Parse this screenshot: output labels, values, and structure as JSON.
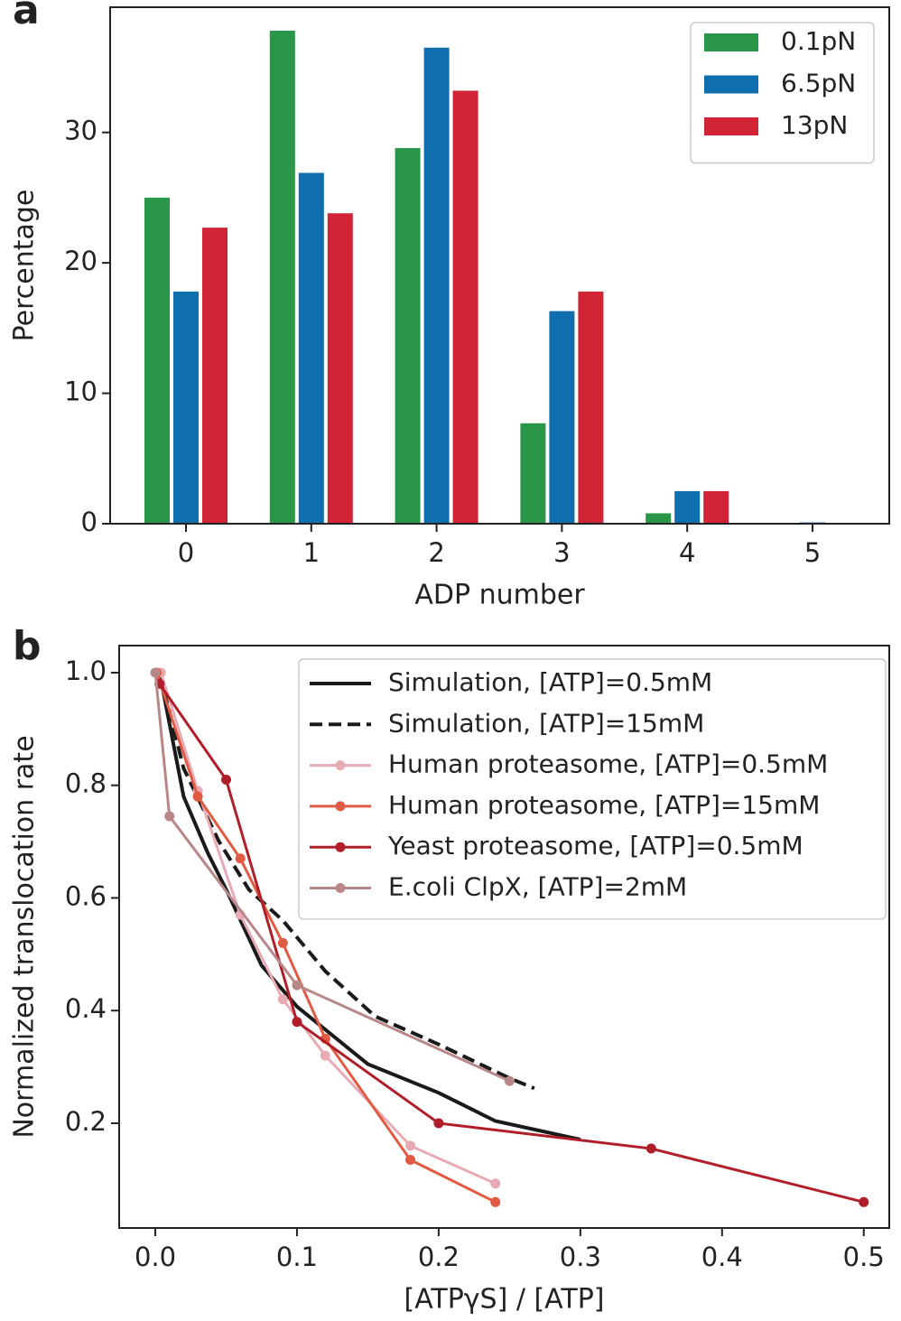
{
  "chart_data": [
    {
      "type": "bar",
      "panel_label": "a",
      "xlabel": "ADP number",
      "ylabel": "Percentage",
      "categories": [
        "0",
        "1",
        "2",
        "3",
        "4",
        "5"
      ],
      "series": [
        {
          "name": "0.1pN",
          "color": "#2a9748",
          "values": [
            25.0,
            37.8,
            28.8,
            7.7,
            0.8,
            0
          ]
        },
        {
          "name": "6.5pN",
          "color": "#0f6eae",
          "values": [
            17.8,
            26.9,
            36.5,
            16.3,
            2.5,
            0.1
          ]
        },
        {
          "name": "13pN",
          "color": "#d12435",
          "values": [
            22.7,
            23.8,
            33.2,
            17.8,
            2.5,
            0
          ]
        }
      ],
      "ylim": [
        0,
        39.6
      ],
      "yticks": [
        0,
        10,
        20,
        30
      ],
      "legend": "upper right"
    },
    {
      "type": "line",
      "panel_label": "b",
      "xlabel": "[ATPγS] / [ATP]",
      "ylabel": "Normalized translocation rate",
      "series": [
        {
          "name": "Simulation, [ATP]=0.5mM",
          "color": "#1a1a1a",
          "dash": false,
          "marker": false,
          "x": [
            0.003,
            0.02,
            0.037,
            0.05,
            0.075,
            0.1,
            0.15,
            0.2,
            0.24,
            0.3
          ],
          "values": [
            1.0,
            0.78,
            0.68,
            0.615,
            0.48,
            0.407,
            0.305,
            0.254,
            0.204,
            0.171
          ]
        },
        {
          "name": "Simulation, [ATP]=15mM",
          "color": "#1a1a1a",
          "dash": true,
          "marker": false,
          "x": [
            0.003,
            0.02,
            0.045,
            0.066,
            0.09,
            0.12,
            0.155,
            0.2,
            0.25,
            0.2675
          ],
          "values": [
            1.0,
            0.83,
            0.7,
            0.615,
            0.56,
            0.47,
            0.39,
            0.34,
            0.28,
            0.262
          ]
        },
        {
          "name": "Human proteasome, [ATP]=0.5mM",
          "color": "#e8aab5",
          "dash": false,
          "marker": true,
          "x": [
            0.004,
            0.03,
            0.06,
            0.09,
            0.12,
            0.18,
            0.24
          ],
          "values": [
            1.0,
            0.79,
            0.57,
            0.42,
            0.32,
            0.16,
            0.093
          ]
        },
        {
          "name": "Human proteasome, [ATP]=15mM",
          "color": "#e05b42",
          "dash": false,
          "marker": true,
          "x": [
            0.001,
            0.03,
            0.06,
            0.09,
            0.12,
            0.18,
            0.24
          ],
          "values": [
            1.0,
            0.78,
            0.67,
            0.52,
            0.35,
            0.135,
            0.06
          ]
        },
        {
          "name": "Yeast proteasome, [ATP]=0.5mM",
          "color": "#b01e2a",
          "dash": false,
          "marker": true,
          "x": [
            0.003,
            0.05,
            0.1,
            0.2,
            0.35,
            0.5
          ],
          "values": [
            0.98,
            0.81,
            0.38,
            0.2,
            0.155,
            0.06
          ]
        },
        {
          "name": "E.coli ClpX, [ATP]=2mM",
          "color": "#b88888",
          "dash": false,
          "marker": true,
          "x": [
            0.0,
            0.01,
            0.1,
            0.25
          ],
          "values": [
            1.0,
            0.745,
            0.445,
            0.275
          ]
        }
      ],
      "xlim": [
        -0.0255,
        0.518
      ],
      "ylim": [
        0.014,
        1.048
      ],
      "xticks": [
        {
          "value": 0,
          "label": "0.0"
        },
        0.1,
        0.2,
        0.3,
        0.4,
        0.5
      ],
      "yticks": [
        0.2,
        0.4,
        0.6,
        0.8,
        {
          "value": 1,
          "label": "1.0"
        }
      ],
      "legend": "upper right"
    }
  ]
}
